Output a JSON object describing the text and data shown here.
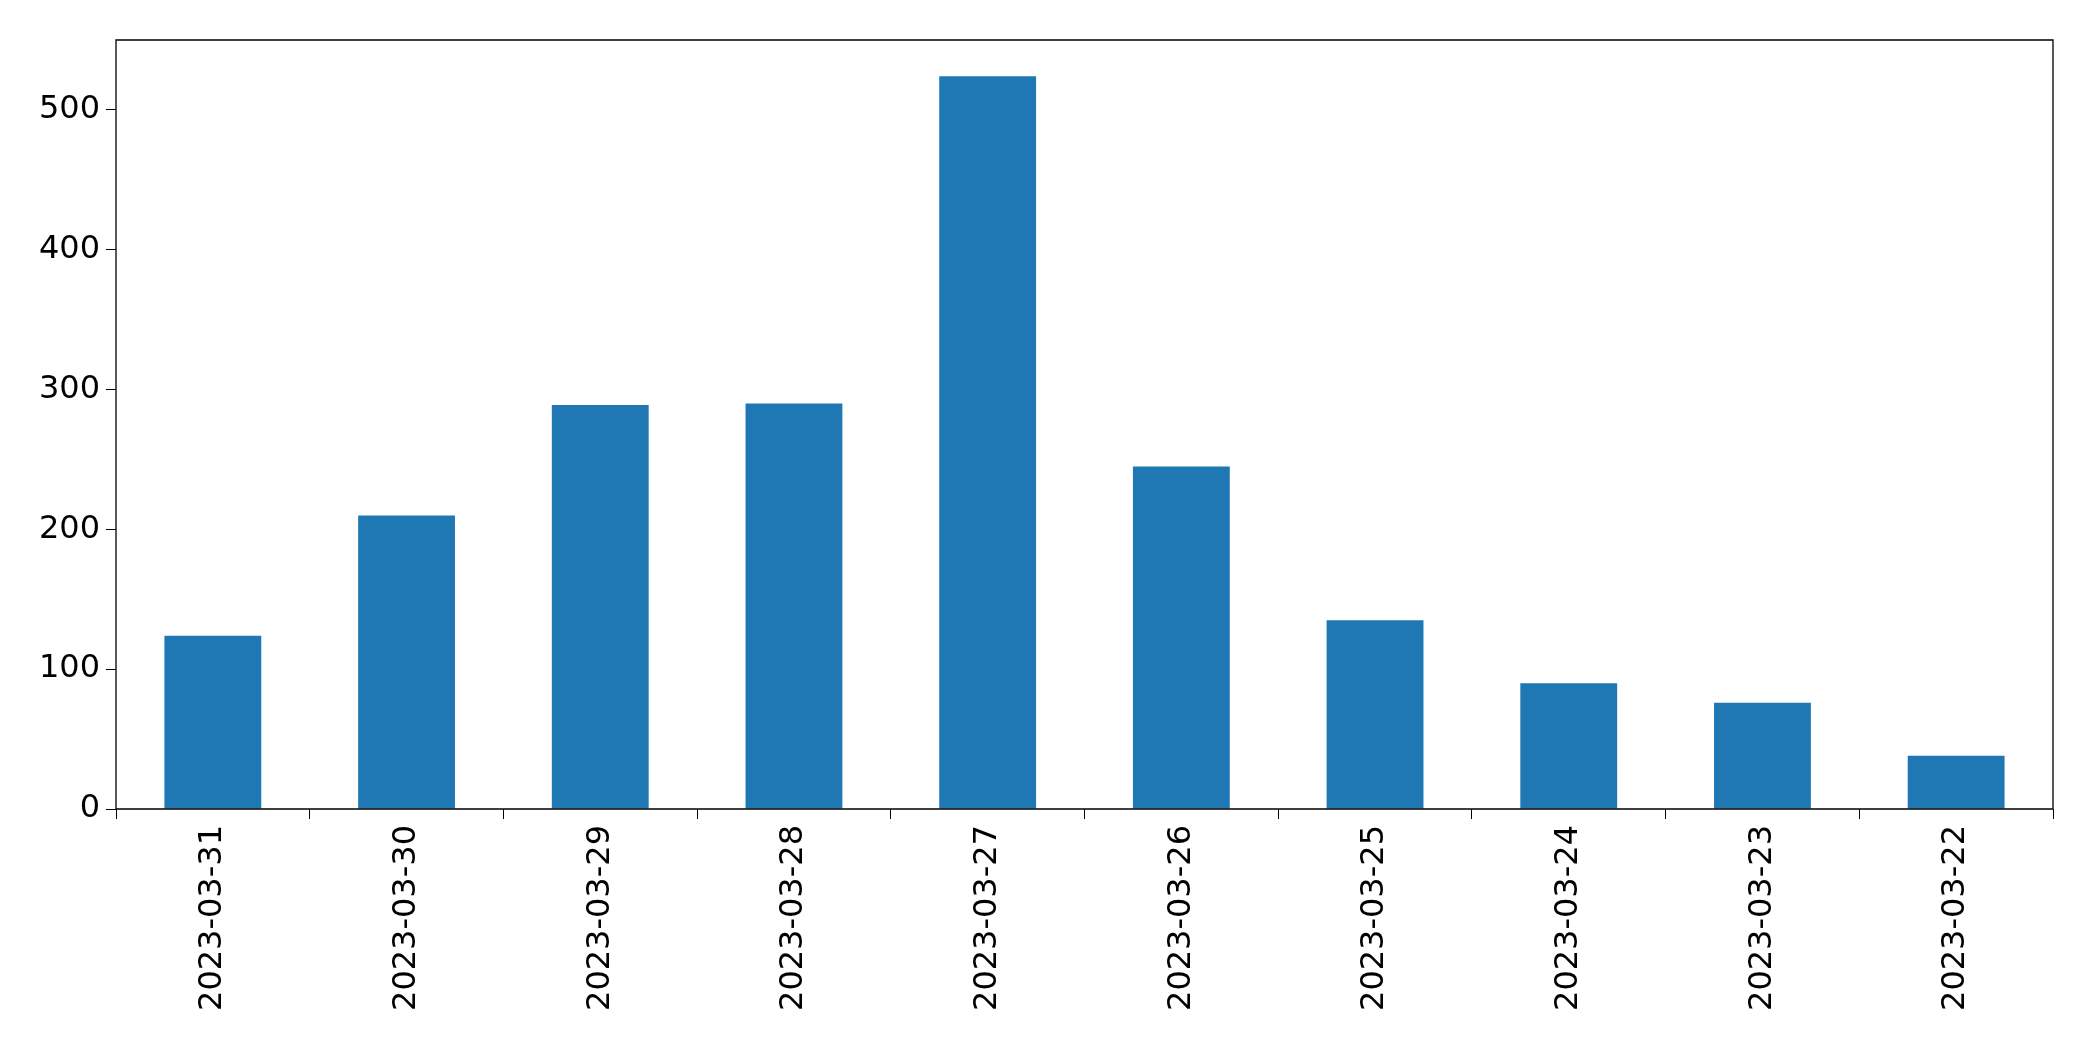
{
  "chart_data": {
    "type": "bar",
    "categories": [
      "2023-03-31",
      "2023-03-30",
      "2023-03-29",
      "2023-03-28",
      "2023-03-27",
      "2023-03-26",
      "2023-03-25",
      "2023-03-24",
      "2023-03-23",
      "2023-03-22"
    ],
    "values": [
      124,
      210,
      289,
      290,
      524,
      245,
      135,
      90,
      76,
      38
    ],
    "color": "#1f77b4",
    "ylim": [
      0,
      550
    ],
    "yticks": [
      0,
      100,
      200,
      300,
      400,
      500
    ],
    "grid": false,
    "legend": false
  }
}
